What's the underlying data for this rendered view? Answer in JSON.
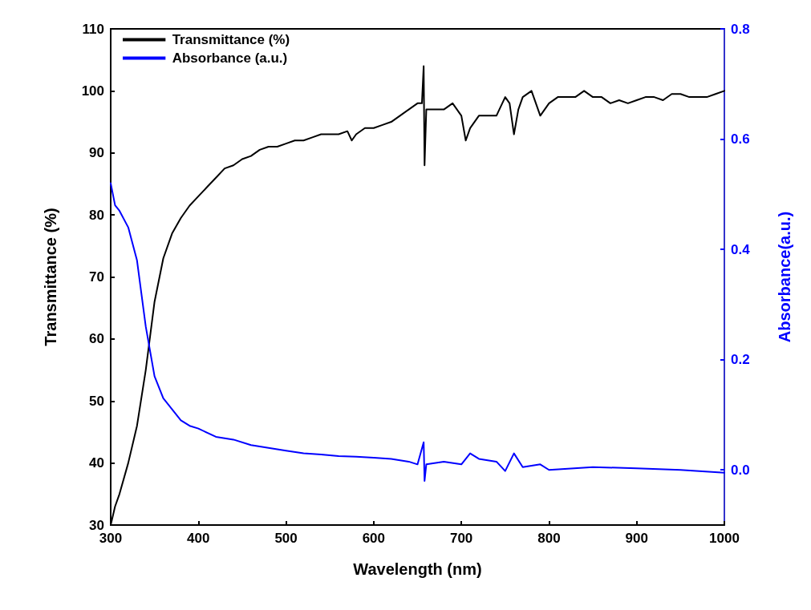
{
  "chart_data": {
    "type": "line",
    "xlabel": "Wavelength (nm)",
    "ylabel": "Transmittance (%)",
    "y2label": "Absorbance(a.u.)",
    "xlim": [
      300,
      1000
    ],
    "xticks": [
      300,
      400,
      500,
      600,
      700,
      800,
      900,
      1000
    ],
    "ylim": [
      30,
      110
    ],
    "yticks": [
      30,
      40,
      50,
      60,
      70,
      80,
      90,
      100,
      110
    ],
    "y2lim": [
      -0.1,
      0.8
    ],
    "y2ticks": [
      {
        "value": 0,
        "label": "0.0"
      },
      0.2,
      0.4,
      0.6,
      0.8
    ],
    "grid": false,
    "legend": "top left",
    "marker": "none",
    "line_style": "solid",
    "series": [
      {
        "name": "Transmittance (%)",
        "color": "#000000",
        "x": [
          300,
          305,
          310,
          320,
          330,
          340,
          350,
          360,
          370,
          380,
          390,
          400,
          410,
          420,
          430,
          440,
          450,
          460,
          470,
          480,
          490,
          500,
          510,
          520,
          530,
          540,
          550,
          560,
          570,
          575,
          580,
          590,
          600,
          610,
          620,
          630,
          640,
          650,
          655,
          657,
          658,
          660,
          670,
          680,
          690,
          700,
          705,
          710,
          720,
          730,
          740,
          750,
          755,
          760,
          765,
          770,
          780,
          790,
          800,
          810,
          820,
          830,
          840,
          850,
          860,
          870,
          880,
          890,
          900,
          910,
          920,
          930,
          940,
          950,
          960,
          970,
          980,
          990,
          1000
        ],
        "values": [
          30,
          33,
          35,
          40,
          46,
          55,
          66,
          73,
          77,
          79.5,
          81.5,
          83,
          84.5,
          86,
          87.5,
          88,
          89,
          89.5,
          90.5,
          91,
          91,
          91.5,
          92,
          92,
          92.5,
          93,
          93,
          93,
          93.5,
          92,
          93,
          94,
          94,
          94.5,
          95,
          96,
          97,
          98,
          98,
          104,
          88,
          97,
          97,
          97,
          98,
          96,
          92,
          94,
          96,
          96,
          96,
          99,
          98,
          93,
          97,
          99,
          100,
          96,
          98,
          99,
          99,
          99,
          100,
          99,
          99,
          98,
          98.5,
          98,
          98.5,
          99,
          99,
          98.5,
          99.5,
          99.5,
          99,
          99,
          99,
          99.5,
          100
        ]
      },
      {
        "name": "Absorbance (a.u.)",
        "color": "#0000ff",
        "axis": "y2",
        "x": [
          300,
          305,
          310,
          320,
          330,
          340,
          350,
          360,
          370,
          380,
          390,
          400,
          420,
          440,
          460,
          480,
          500,
          520,
          540,
          560,
          580,
          600,
          620,
          640,
          650,
          657,
          658,
          660,
          680,
          700,
          710,
          720,
          740,
          750,
          760,
          770,
          790,
          800,
          850,
          900,
          950,
          1000
        ],
        "values": [
          0.52,
          0.48,
          0.47,
          0.44,
          0.38,
          0.26,
          0.17,
          0.13,
          0.11,
          0.09,
          0.08,
          0.075,
          0.06,
          0.055,
          0.045,
          0.04,
          0.035,
          0.03,
          0.028,
          0.025,
          0.024,
          0.022,
          0.02,
          0.015,
          0.01,
          0.05,
          -0.02,
          0.01,
          0.015,
          0.01,
          0.03,
          0.02,
          0.015,
          -0.002,
          0.03,
          0.005,
          0.01,
          0.0,
          0.005,
          0.003,
          0.0,
          -0.005
        ]
      }
    ]
  }
}
